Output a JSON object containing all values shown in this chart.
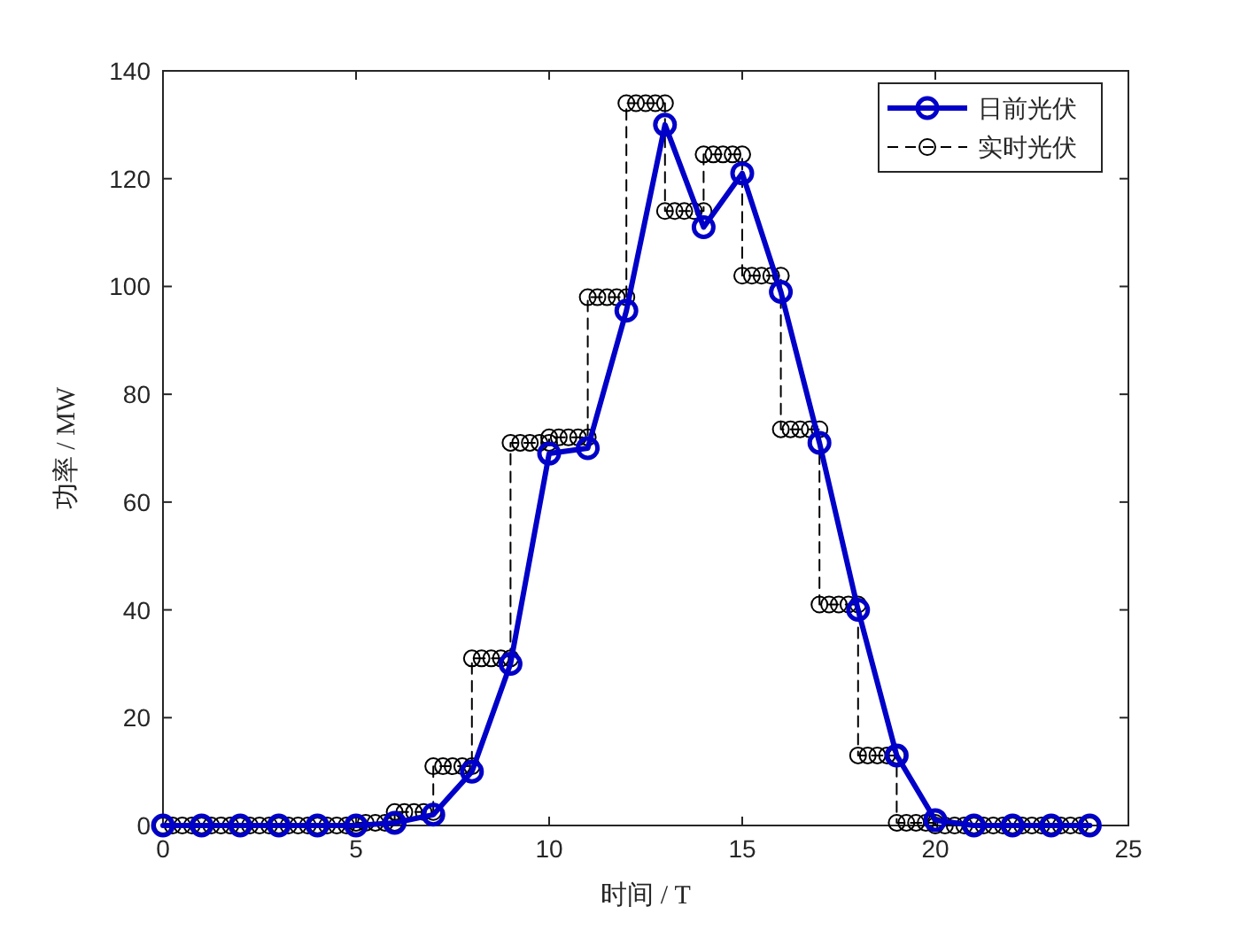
{
  "chart_data": {
    "type": "line",
    "xlabel": "时间 / T",
    "ylabel": "功率 / MW",
    "xlim": [
      0,
      25
    ],
    "xticks": [
      0,
      5,
      10,
      15,
      20,
      25
    ],
    "ylim": [
      0,
      140
    ],
    "yticks": [
      0,
      20,
      40,
      60,
      80,
      100,
      120,
      140
    ],
    "legend": "top right",
    "grid": false,
    "series": [
      {
        "name": "日前光伏",
        "color": "#0000c8",
        "marker": "circle",
        "line_style": "solid",
        "x": [
          0,
          1,
          2,
          3,
          4,
          5,
          6,
          7,
          8,
          9,
          10,
          11,
          12,
          13,
          14,
          15,
          16,
          17,
          18,
          19,
          20,
          21,
          22,
          23,
          24
        ],
        "values": [
          0,
          0,
          0,
          0,
          0,
          0,
          0.5,
          2,
          10,
          30,
          69,
          70,
          95.5,
          130,
          111,
          121,
          99,
          71,
          40,
          13,
          1,
          0,
          0,
          0,
          0
        ]
      },
      {
        "name": "实时光伏",
        "color": "#000000",
        "marker": "circle",
        "line_style": "dashed",
        "x": [
          0,
          0.25,
          0.5,
          0.75,
          1,
          1,
          1.25,
          1.5,
          1.75,
          2,
          2,
          2.25,
          2.5,
          2.75,
          3,
          3,
          3.25,
          3.5,
          3.75,
          4,
          4,
          4.25,
          4.5,
          4.75,
          5,
          5,
          5.25,
          5.5,
          5.75,
          6,
          6,
          6.25,
          6.5,
          6.75,
          7,
          7,
          7.25,
          7.5,
          7.75,
          8,
          8,
          8.25,
          8.5,
          8.75,
          9,
          9,
          9.25,
          9.5,
          9.75,
          10,
          10,
          10.25,
          10.5,
          10.75,
          11,
          11,
          11.25,
          11.5,
          11.75,
          12,
          12,
          12.25,
          12.5,
          12.75,
          13,
          13,
          13.25,
          13.5,
          13.75,
          14,
          14,
          14.25,
          14.5,
          14.75,
          15,
          15,
          15.25,
          15.5,
          15.75,
          16,
          16,
          16.25,
          16.5,
          16.75,
          17,
          17,
          17.25,
          17.5,
          17.75,
          18,
          18,
          18.25,
          18.5,
          18.75,
          19,
          19,
          19.25,
          19.5,
          19.75,
          20,
          20,
          20.25,
          20.5,
          20.75,
          21,
          21,
          21.25,
          21.5,
          21.75,
          22,
          22,
          22.25,
          22.5,
          22.75,
          23,
          23,
          23.25,
          23.5,
          23.75,
          24
        ],
        "values": [
          0,
          0,
          0,
          0,
          0,
          0,
          0,
          0,
          0,
          0,
          0,
          0,
          0,
          0,
          0,
          0,
          0,
          0,
          0,
          0,
          0,
          0,
          0,
          0,
          0,
          0.5,
          0.5,
          0.5,
          0.5,
          0.5,
          2.5,
          2.5,
          2.5,
          2.5,
          2.5,
          11,
          11,
          11,
          11,
          11,
          31,
          31,
          31,
          31,
          31,
          71,
          71,
          71,
          71,
          71,
          72,
          72,
          72,
          72,
          72,
          98,
          98,
          98,
          98,
          98,
          134,
          134,
          134,
          134,
          134,
          114,
          114,
          114,
          114,
          114,
          124.5,
          124.5,
          124.5,
          124.5,
          124.5,
          102,
          102,
          102,
          102,
          102,
          73.5,
          73.5,
          73.5,
          73.5,
          73.5,
          41,
          41,
          41,
          41,
          41,
          13,
          13,
          13,
          13,
          13,
          0.5,
          0.5,
          0.5,
          0.5,
          0.5,
          0,
          0,
          0,
          0,
          0,
          0,
          0,
          0,
          0,
          0,
          0,
          0,
          0,
          0,
          0,
          0,
          0,
          0,
          0,
          0
        ]
      }
    ]
  }
}
